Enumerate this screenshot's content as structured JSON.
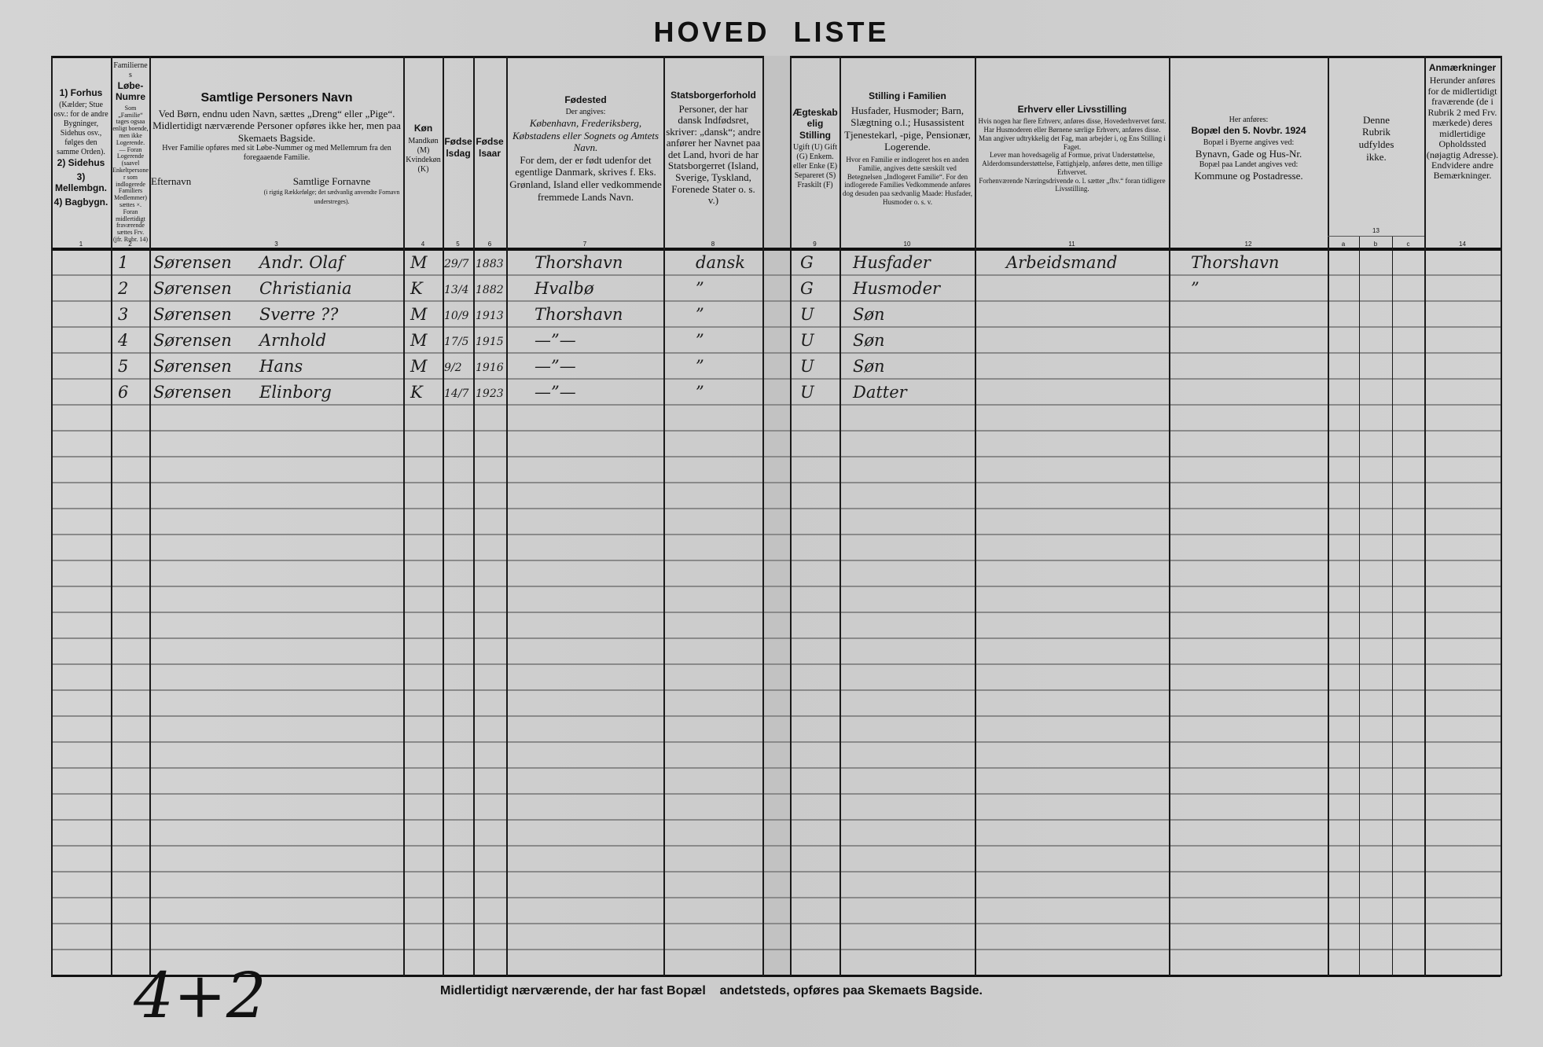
{
  "title": "HOVED LISTE",
  "columns": {
    "c1": {
      "lines": [
        "1) Forhus",
        "(Kælder; Stue osv.: for de andre Bygninger, Sidehus osv., følges den samme Orden).",
        "2) Sidehus",
        "3) Mellembgn.",
        "4) Bagbygn."
      ],
      "num": "1"
    },
    "c2": {
      "head": "Familiernes",
      "bold": "Løbe-Numre",
      "small": "Som „Familie“ tages ogsaa enligt boende, men ikke Logerende. — Foran Logerende (saavel Enkeltpersoner som indlogerede Familiers Medlemmer) sættes ×. Foran midlertidigt fraværende sættes Frv. (jfr. Rubr. 14)",
      "num": "2"
    },
    "c3": {
      "head": "Samtlige Personers Navn",
      "l1": "Ved Børn, endnu uden Navn, sættes „Dreng“ eller „Pige“.",
      "l2": "Midlertidigt nærværende Personer opføres ikke her, men paa Skemaets Bagside.",
      "l3": "Hver Familie opføres med sit Løbe-Nummer og med Mellemrum fra den foregaaende Familie.",
      "sub1": "Efternavn",
      "sub2": "Samtlige Fornavne",
      "sub2small": "(i rigtig Rækkefølge; det sædvanlig anvendte Fornavn understreges).",
      "num": "3"
    },
    "c4": {
      "head": "Køn",
      "l1": "Mandkøn (M)",
      "l2": "Kvindekøn (K)",
      "num": "4"
    },
    "c5": {
      "head": "Fødselsdag",
      "num": "5"
    },
    "c6": {
      "head": "Fødselsaar",
      "num": "6"
    },
    "c7": {
      "head": "Fødested",
      "l1": "Der angives:",
      "l2": "København, Frederiksberg, Købstadens eller Sognets og Amtets Navn.",
      "l3": "For dem, der er født udenfor det egentlige Danmark, skrives f. Eks. Grønland, Island eller vedkommende fremmede Lands Navn.",
      "num": "7"
    },
    "c8": {
      "head": "Statsborgerforhold",
      "l1": "Personer, der har dansk Indfødsret, skriver: „dansk“; andre anfører her Navnet paa det Land, hvori de har Statsborgerret (Island, Sverige, Tyskland, Forenede Stater o. s. v.)",
      "num": "8"
    },
    "c9": {
      "head": "Ægteskabelig Stilling",
      "l1": "Ugift (U) Gift (G) Enkem. eller Enke (E) Separeret (S) Fraskilt (F)",
      "num": "9"
    },
    "c10": {
      "head": "Stilling i Familien",
      "l1": "Husfader, Husmoder; Barn, Slægtning o.l.; Husassistent Tjenestekarl, -pige, Pensionær, Logerende.",
      "l2": "Hvor en Familie er indlogeret hos en anden Familie, angives dette særskilt ved Betegnelsen „Indlogeret Familie“. For den indlogerede Families Vedkommende anføres dog desuden paa sædvanlig Maade: Husfader, Husmoder o. s. v.",
      "num": "10"
    },
    "c11": {
      "head": "Erhverv eller Livsstilling",
      "l1": "Hvis nogen har flere Erhverv, anføres disse, Hovederhvervet først.",
      "l2": "Har Husmoderen eller Børnene særlige Erhverv, anføres disse.",
      "l3": "Man angiver udtrykkelig det Fag, man arbejder i, og Ens Stilling i Faget.",
      "l4": "Lever man hovedsagelig af Formue, privat Understøttelse, Alderdomsunderstøttelse, Fattighjælp, anføres dette, men tillige Erhvervet.",
      "l5": "Forhenværende Næringsdrivende o. l. sætter „fhv.“ foran tidligere Livsstilling.",
      "num": "11"
    },
    "c12": {
      "l1": "Her anføres:",
      "head": "Bopæl den 5. Novbr. 1924",
      "l2": "Bopæl i Byerne angives ved:",
      "l3": "Bynavn, Gade og Hus-Nr.",
      "l4": "Bopæl paa Landet angives ved:",
      "l5": "Kommune og Postadresse.",
      "num": "12"
    },
    "c13": {
      "l1": "Denne Rubrik udfyldes ikke.",
      "num": "13",
      "a": "a",
      "b": "b",
      "c": "c"
    },
    "c14": {
      "head": "Anmærkninger",
      "l1": "Herunder anføres for de midlertidigt fraværende (de i Rubrik 2 med Frv. mærkede) deres midlertidige Opholdssted (nøjagtig Adresse). Endvidere andre Bemærkninger.",
      "num": "14"
    }
  },
  "persons": [
    {
      "no": "1",
      "surname": "Sørensen",
      "given": "Andr. Olaf",
      "sex": "M",
      "day": "29/7",
      "year": "1883",
      "birthplace": "Thorshavn",
      "citizenship": "dansk",
      "marital": "G",
      "family_role": "Husfader",
      "occupation": "Arbeidsmand",
      "residence": "Thorshavn"
    },
    {
      "no": "2",
      "surname": "Sørensen",
      "given": "Christiania",
      "sex": "K",
      "day": "13/4",
      "year": "1882",
      "birthplace": "Hvalbø",
      "citizenship": "”",
      "marital": "G",
      "family_role": "Husmoder",
      "occupation": "",
      "residence": "”"
    },
    {
      "no": "3",
      "surname": "Sørensen",
      "given": "Sverre ??",
      "sex": "M",
      "day": "10/9",
      "year": "1913",
      "birthplace": "Thorshavn",
      "citizenship": "”",
      "marital": "U",
      "family_role": "Søn",
      "occupation": "",
      "residence": ""
    },
    {
      "no": "4",
      "surname": "Sørensen",
      "given": "Arnhold",
      "sex": "M",
      "day": "17/5",
      "year": "1915",
      "birthplace": "—”—",
      "citizenship": "”",
      "marital": "U",
      "family_role": "Søn",
      "occupation": "",
      "residence": ""
    },
    {
      "no": "5",
      "surname": "Sørensen",
      "given": "Hans",
      "sex": "M",
      "day": "9/2",
      "year": "1916",
      "birthplace": "—”—",
      "citizenship": "”",
      "marital": "U",
      "family_role": "Søn",
      "occupation": "",
      "residence": ""
    },
    {
      "no": "6",
      "surname": "Sørensen",
      "given": "Elinborg",
      "sex": "K",
      "day": "14/7",
      "year": "1923",
      "birthplace": "—”—",
      "citizenship": "”",
      "marital": "U",
      "family_role": "Datter",
      "occupation": "",
      "residence": ""
    }
  ],
  "footer": {
    "tally": "4+2",
    "note": "Midlertidigt nærværende, der har fast Bopæl    andetsteds, opføres paa Skemaets Bagside."
  }
}
